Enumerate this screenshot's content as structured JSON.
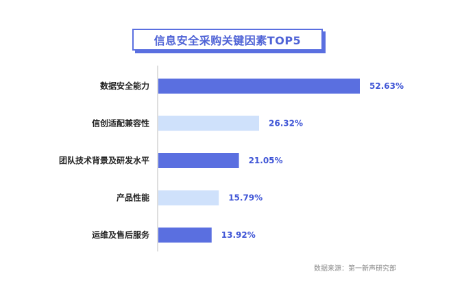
{
  "chart_data": {
    "type": "bar",
    "orientation": "horizontal",
    "title": "信息安全采购关键因素TOP5",
    "categories": [
      "数据安全能力",
      "信创适配兼容性",
      "团队技术背景及研发水平",
      "产品性能",
      "运维及售后服务"
    ],
    "values": [
      52.63,
      26.32,
      21.05,
      15.79,
      13.92
    ],
    "value_labels": [
      "52.63%",
      "26.32%",
      "21.05%",
      "15.79%",
      "13.92%"
    ],
    "unit": "%",
    "xlim": [
      0,
      52.63
    ],
    "grid": false,
    "legend": "none",
    "colors": [
      "#5a6fe0",
      "#cfe1fb",
      "#5a6fe0",
      "#cfe1fb",
      "#5a6fe0"
    ]
  },
  "source": "数据来源：第一新声研究部"
}
